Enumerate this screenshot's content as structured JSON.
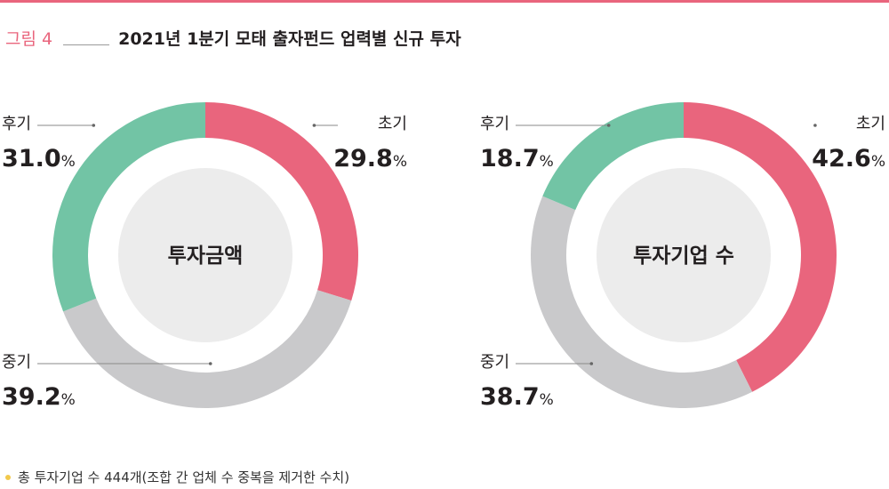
{
  "figure": {
    "label": "그림 4",
    "title": "2021년 1분기 모태 출자펀드 업력별 신규 투자"
  },
  "colors": {
    "early": "#e9657d",
    "middle": "#c9c9cb",
    "late": "#72c4a5",
    "inner_disc": "#ececec",
    "accent": "#e9657d"
  },
  "chart_data": [
    {
      "type": "pie",
      "center_label": "투자금액",
      "unit": "%",
      "slices": [
        {
          "name": "초기",
          "value": 29.8,
          "value_label": "29.8"
        },
        {
          "name": "중기",
          "value": 39.2,
          "value_label": "39.2"
        },
        {
          "name": "후기",
          "value": 31.0,
          "value_label": "31.0"
        }
      ]
    },
    {
      "type": "pie",
      "center_label": "투자기업 수",
      "unit": "%",
      "slices": [
        {
          "name": "초기",
          "value": 42.6,
          "value_label": "42.6"
        },
        {
          "name": "중기",
          "value": 38.7,
          "value_label": "38.7"
        },
        {
          "name": "후기",
          "value": 18.7,
          "value_label": "18.7"
        }
      ]
    }
  ],
  "footnote": "총 투자기업 수 444개(조합 간 업체 수 중복을 제거한 수치)"
}
